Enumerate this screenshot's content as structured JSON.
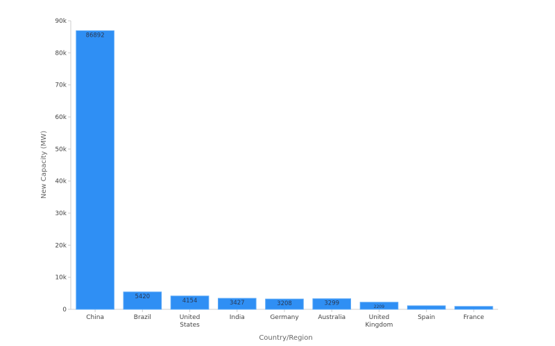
{
  "chart_data": {
    "type": "bar",
    "categories": [
      [
        "China"
      ],
      [
        "Brazil"
      ],
      [
        "United",
        "States"
      ],
      [
        "India"
      ],
      [
        "Germany"
      ],
      [
        "Australia"
      ],
      [
        "United",
        "Kingdom"
      ],
      [
        "Spain"
      ],
      [
        "France"
      ]
    ],
    "values": [
      86892,
      5420,
      4154,
      3427,
      3208,
      3299,
      2209,
      1100,
      900
    ],
    "data_labels": [
      "86892",
      "5420",
      "4154",
      "3427",
      "3208",
      "3299",
      "2209",
      "",
      ""
    ],
    "xlabel": "Country/Region",
    "ylabel": "New Capacity (MW)",
    "ylim": [
      0,
      90000
    ],
    "yticks": [
      0,
      10000,
      20000,
      30000,
      40000,
      50000,
      60000,
      70000,
      80000,
      90000
    ],
    "ytick_labels": [
      "0",
      "10k",
      "20k",
      "30k",
      "40k",
      "50k",
      "60k",
      "70k",
      "80k",
      "90k"
    ],
    "grid": false,
    "bar_color": "#2f8ff4",
    "bar_edge_color": "#5aa8f7"
  }
}
